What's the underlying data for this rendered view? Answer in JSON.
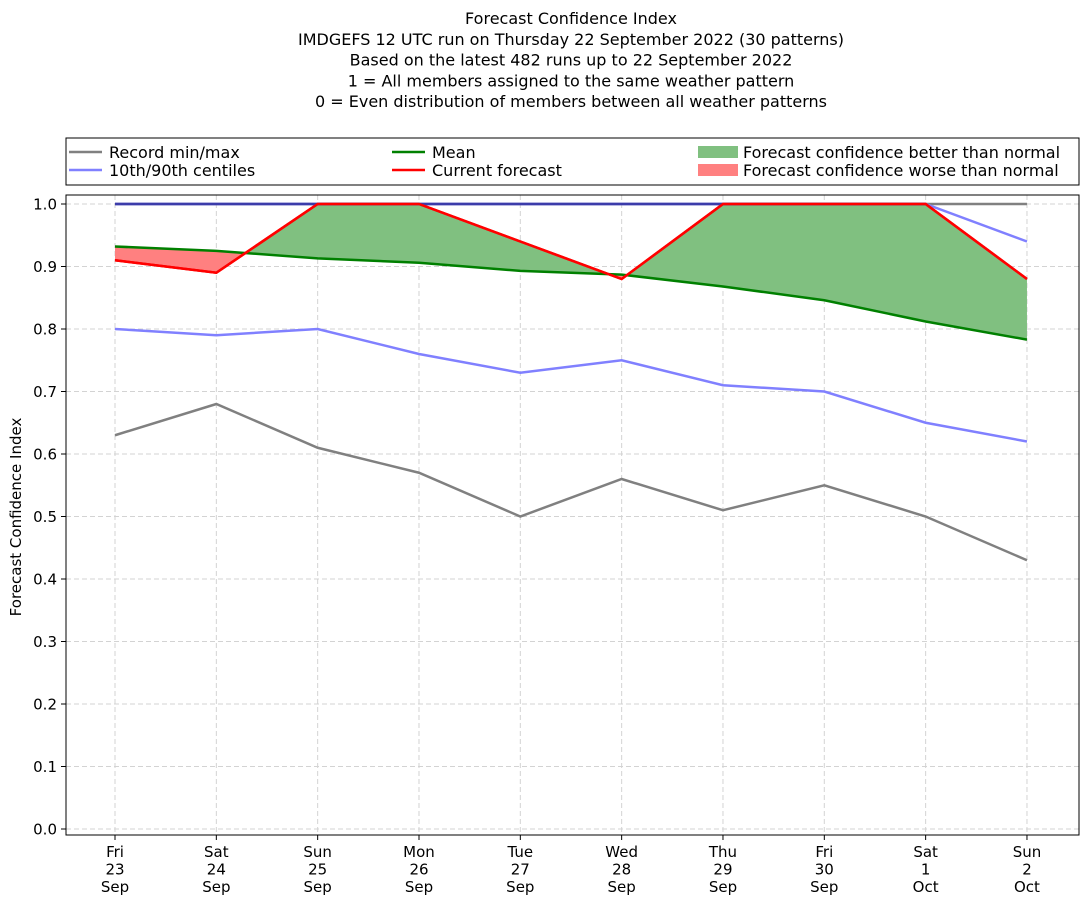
{
  "chart_data": {
    "type": "line",
    "title_lines": [
      "Forecast Confidence Index",
      "IMDGEFS 12 UTC run on Thursday 22 September 2022 (30 patterns)",
      "Based on the latest 482 runs up to 22 September 2022",
      "1 = All members assigned to the same weather pattern",
      "0 = Even distribution of members between all weather patterns"
    ],
    "ylabel": "Forecast Confidence Index",
    "ylim": [
      0.0,
      1.0
    ],
    "yticks": [
      "0.0",
      "0.1",
      "0.2",
      "0.3",
      "0.4",
      "0.5",
      "0.6",
      "0.7",
      "0.8",
      "0.9",
      "1.0"
    ],
    "categories": [
      [
        "Fri",
        "23",
        "Sep"
      ],
      [
        "Sat",
        "24",
        "Sep"
      ],
      [
        "Sun",
        "25",
        "Sep"
      ],
      [
        "Mon",
        "26",
        "Sep"
      ],
      [
        "Tue",
        "27",
        "Sep"
      ],
      [
        "Wed",
        "28",
        "Sep"
      ],
      [
        "Thu",
        "29",
        "Sep"
      ],
      [
        "Fri",
        "30",
        "Sep"
      ],
      [
        "Sat",
        "1",
        "Oct"
      ],
      [
        "Sun",
        "2",
        "Oct"
      ]
    ],
    "grid": true,
    "legend_position": "top, above plot, 3 columns",
    "legend": [
      {
        "label": "Record min/max",
        "kind": "line",
        "color": "#808080"
      },
      {
        "label": "10th/90th centiles",
        "kind": "line",
        "color": "#8080ff"
      },
      {
        "label": "Mean",
        "kind": "line",
        "color": "#008000"
      },
      {
        "label": "Current forecast",
        "kind": "line",
        "color": "#ff0000"
      },
      {
        "label": "Forecast confidence better than normal",
        "kind": "patch",
        "color": "#80c080"
      },
      {
        "label": "Forecast confidence worse than normal",
        "kind": "patch",
        "color": "#ff8080"
      }
    ],
    "series": [
      {
        "key": "record_max",
        "color": "#808080",
        "values": [
          1.0,
          1.0,
          1.0,
          1.0,
          1.0,
          1.0,
          1.0,
          1.0,
          1.0,
          1.0
        ]
      },
      {
        "key": "record_min",
        "color": "#808080",
        "values": [
          0.63,
          0.68,
          0.61,
          0.57,
          0.5,
          0.56,
          0.51,
          0.55,
          0.5,
          0.43
        ]
      },
      {
        "key": "p90",
        "color": "#8080ff",
        "values": [
          1.0,
          1.0,
          1.0,
          1.0,
          1.0,
          1.0,
          1.0,
          1.0,
          1.0,
          0.94
        ]
      },
      {
        "key": "p10",
        "color": "#8080ff",
        "values": [
          0.8,
          0.79,
          0.8,
          0.76,
          0.73,
          0.75,
          0.71,
          0.7,
          0.65,
          0.62
        ]
      },
      {
        "key": "mean",
        "color": "#008000",
        "values": [
          0.932,
          0.925,
          0.913,
          0.906,
          0.893,
          0.887,
          0.868,
          0.846,
          0.812,
          0.783
        ]
      },
      {
        "key": "current",
        "color": "#ff0000",
        "values": [
          0.91,
          0.89,
          1.0,
          1.0,
          0.94,
          0.88,
          1.0,
          1.0,
          1.0,
          0.88
        ]
      }
    ],
    "fill_better_color": "#80c080",
    "fill_worse_color": "#ff8080"
  }
}
